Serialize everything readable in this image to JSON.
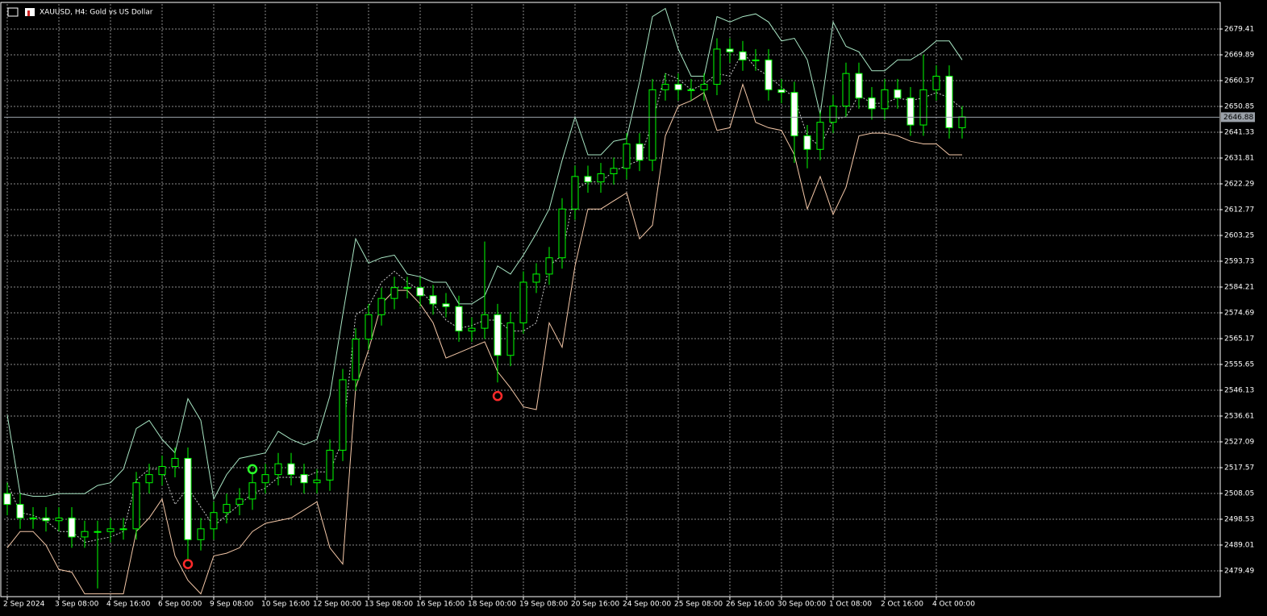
{
  "chart_data": {
    "type": "candlestick",
    "title": "XAUUSD, H4:  Gold vs US Dollar",
    "up_color": "#00ff00",
    "down_color": "#ffffff",
    "open": [
      2508,
      2504,
      2499,
      2499,
      2498,
      2499,
      2492,
      2494,
      2494,
      2495,
      2495,
      2512,
      2515,
      2518,
      2521,
      2491,
      2495,
      2501,
      2504,
      2506,
      2512,
      2515,
      2519,
      2515,
      2512,
      2513,
      2524,
      2550,
      2565,
      2574,
      2580,
      2584,
      2584,
      2581,
      2578,
      2577,
      2568,
      2569,
      2574,
      2559,
      2571,
      2586,
      2589,
      2595,
      2613,
      2625,
      2623,
      2626,
      2628,
      2637,
      2631,
      2657,
      2659,
      2657,
      2657,
      2659,
      2672,
      2671,
      2668,
      2668,
      2657,
      2656,
      2640,
      2635,
      2645,
      2651,
      2663,
      2654,
      2650,
      2657,
      2654,
      2644,
      2657,
      2662,
      2643
    ],
    "high": [
      2512,
      2508,
      2503,
      2503,
      2503,
      2503,
      2498,
      2498,
      2499,
      2499,
      2516,
      2519,
      2522,
      2525,
      2525,
      2499,
      2505,
      2508,
      2510,
      2516,
      2519,
      2523,
      2523,
      2519,
      2517,
      2528,
      2554,
      2569,
      2578,
      2584,
      2588,
      2588,
      2588,
      2585,
      2582,
      2581,
      2573,
      2601,
      2578,
      2575,
      2590,
      2593,
      2599,
      2617,
      2629,
      2629,
      2630,
      2632,
      2641,
      2641,
      2661,
      2663,
      2663,
      2661,
      2663,
      2676,
      2676,
      2675,
      2672,
      2672,
      2661,
      2660,
      2644,
      2649,
      2655,
      2667,
      2667,
      2658,
      2661,
      2661,
      2658,
      2670,
      2666,
      2666,
      2651
    ],
    "low": [
      2500,
      2495,
      2495,
      2494,
      2494,
      2488,
      2488,
      2473,
      2490,
      2491,
      2491,
      2508,
      2511,
      2514,
      2483,
      2487,
      2491,
      2497,
      2500,
      2502,
      2508,
      2511,
      2511,
      2508,
      2508,
      2509,
      2520,
      2546,
      2561,
      2570,
      2576,
      2580,
      2577,
      2574,
      2573,
      2564,
      2564,
      2565,
      2549,
      2555,
      2567,
      2582,
      2585,
      2591,
      2609,
      2619,
      2619,
      2622,
      2624,
      2627,
      2627,
      2653,
      2653,
      2653,
      2653,
      2655,
      2667,
      2664,
      2664,
      2653,
      2652,
      2630,
      2628,
      2631,
      2641,
      2647,
      2650,
      2646,
      2646,
      2650,
      2640,
      2640,
      2653,
      2639,
      2639
    ],
    "close": [
      2504,
      2499,
      2499,
      2498,
      2499,
      2492,
      2494,
      2494,
      2495,
      2495,
      2512,
      2515,
      2518,
      2521,
      2491,
      2495,
      2501,
      2504,
      2506,
      2512,
      2515,
      2519,
      2515,
      2512,
      2513,
      2524,
      2550,
      2565,
      2574,
      2580,
      2584,
      2584,
      2581,
      2578,
      2577,
      2568,
      2569,
      2574,
      2559,
      2571,
      2586,
      2589,
      2595,
      2613,
      2625,
      2623,
      2626,
      2628,
      2637,
      2631,
      2657,
      2659,
      2657,
      2657,
      2659,
      2672,
      2671,
      2668,
      2668,
      2657,
      2656,
      2640,
      2635,
      2645,
      2651,
      2663,
      2654,
      2650,
      2657,
      2654,
      2644,
      2657,
      2662,
      2643,
      2647
    ],
    "indicator_lines": [
      {
        "color": "#a8e6c4",
        "dash": false,
        "values": [
          2537,
          2508,
          2507,
          2507,
          2508,
          2508,
          2508,
          2511,
          2512,
          2517,
          2532,
          2535,
          2528,
          2523,
          2543,
          2535,
          2506,
          2515,
          2521,
          2522,
          2523,
          2531,
          2528,
          2526,
          2528,
          2544,
          2574,
          2602,
          2593,
          2595,
          2596,
          2589,
          2588,
          2586,
          2586,
          2578,
          2578,
          2581,
          2592,
          2589,
          2596,
          2604,
          2613,
          2631,
          2647,
          2633,
          2633,
          2638,
          2639,
          2660,
          2684,
          2687,
          2672,
          2662,
          2662,
          2684,
          2682,
          2684,
          2685,
          2682,
          2675,
          2676,
          2668,
          2648,
          2682,
          2673,
          2671,
          2664,
          2664,
          2668,
          2668,
          2671,
          2675,
          2675,
          2668
        ]
      },
      {
        "color": "#c8c8c8",
        "dash": true,
        "values": [
          2512,
          2501,
          2500,
          2498,
          2494,
          2494,
          2490,
          2491,
          2492,
          2494,
          2513,
          2517,
          2517,
          2504,
          2510,
          2503,
          2496,
          2500,
          2504,
          2508,
          2510,
          2514,
          2514,
          2514,
          2516,
          2516,
          2528,
          2574,
          2577,
          2586,
          2590,
          2586,
          2583,
          2578,
          2572,
          2569,
          2570,
          2572,
          2572,
          2568,
          2568,
          2571,
          2592,
          2596,
          2620,
          2623,
          2623,
          2627,
          2629,
          2631,
          2645,
          2663,
          2661,
          2657,
          2659,
          2663,
          2662,
          2671,
          2665,
          2662,
          2658,
          2654,
          2640,
          2636,
          2646,
          2647,
          2655,
          2652,
          2652,
          2654,
          2653,
          2654,
          2656,
          2654,
          2650
        ]
      },
      {
        "color": "#f5c8a8",
        "dash": false,
        "values": [
          2488,
          2494,
          2494,
          2489,
          2480,
          2479,
          2471,
          2471,
          2471,
          2471,
          2494,
          2499,
          2506,
          2485,
          2476,
          2471,
          2485,
          2486,
          2488,
          2494,
          2497,
          2498,
          2499,
          2502,
          2505,
          2488,
          2482,
          2547,
          2561,
          2578,
          2583,
          2583,
          2578,
          2571,
          2558,
          2560,
          2562,
          2564,
          2553,
          2547,
          2540,
          2539,
          2571,
          2562,
          2592,
          2613,
          2613,
          2616,
          2619,
          2602,
          2607,
          2640,
          2651,
          2653,
          2656,
          2642,
          2643,
          2659,
          2645,
          2643,
          2642,
          2633,
          2613,
          2625,
          2611,
          2621,
          2640,
          2641,
          2641,
          2640,
          2638,
          2637,
          2637,
          2633,
          2633
        ]
      }
    ],
    "signals": [
      {
        "x": 14,
        "value": 2482,
        "color": "#ff2a2a"
      },
      {
        "x": 19,
        "value": 2517,
        "color": "#2aff2a"
      },
      {
        "x": 38,
        "value": 2544,
        "color": "#ff2a2a"
      }
    ],
    "current_price": 2646.88,
    "xlim": [
      -0.25,
      93.94
    ],
    "ylim": [
      2469.97,
      2688.63
    ],
    "yticks": [
      2479.49,
      2489.01,
      2498.53,
      2508.05,
      2517.57,
      2527.09,
      2536.61,
      2546.13,
      2555.65,
      2565.17,
      2574.69,
      2584.21,
      2593.73,
      2603.25,
      2612.77,
      2622.29,
      2631.81,
      2641.33,
      2650.85,
      2660.37,
      2669.89,
      2679.41
    ],
    "xticks": [
      {
        "value": 0,
        "label": "2 Sep 2024"
      },
      {
        "value": 4,
        "label": "3 Sep 08:00"
      },
      {
        "value": 8,
        "label": "4 Sep 16:00"
      },
      {
        "value": 12,
        "label": "6 Sep 00:00"
      },
      {
        "value": 16,
        "label": "9 Sep 08:00"
      },
      {
        "value": 20,
        "label": "10 Sep 16:00"
      },
      {
        "value": 24,
        "label": "12 Sep 00:00"
      },
      {
        "value": 28,
        "label": "13 Sep 08:00"
      },
      {
        "value": 32,
        "label": "16 Sep 16:00"
      },
      {
        "value": 36,
        "label": "18 Sep 00:00"
      },
      {
        "value": 40,
        "label": "19 Sep 08:00"
      },
      {
        "value": 44,
        "label": "20 Sep 16:00"
      },
      {
        "value": 48,
        "label": "24 Sep 00:00"
      },
      {
        "value": 52,
        "label": "25 Sep 08:00"
      },
      {
        "value": 56,
        "label": "26 Sep 16:00"
      },
      {
        "value": 60,
        "label": "30 Sep 00:00"
      },
      {
        "value": 64,
        "label": "1 Oct 08:00"
      },
      {
        "value": 68,
        "label": "2 Oct 16:00"
      },
      {
        "value": 72,
        "label": "4 Oct 00:00"
      }
    ],
    "grid": true
  }
}
